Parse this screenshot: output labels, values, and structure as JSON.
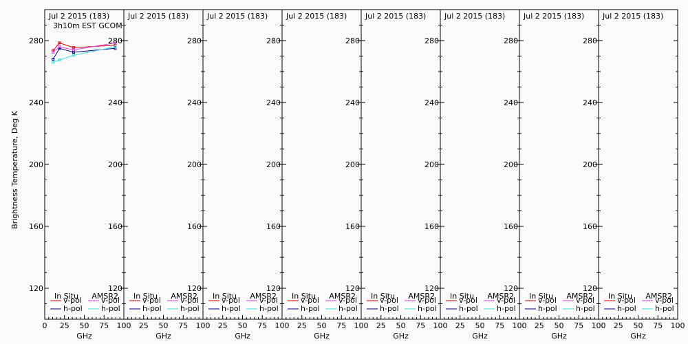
{
  "chart_data": {
    "type": "line",
    "ylabel": "Brightness Temperature, Deg K",
    "xlabel": "GHz",
    "xlim": [
      0,
      100
    ],
    "ylim": [
      100,
      300
    ],
    "xticks": [
      0,
      25,
      50,
      75,
      100
    ],
    "xtick_labels_first": [
      "0",
      "25",
      "50",
      "75",
      "100"
    ],
    "xtick_labels_other": [
      "",
      "25",
      "50",
      "75",
      "100"
    ],
    "yticks": [
      120,
      160,
      200,
      240,
      280
    ],
    "ytick_labels": [
      "120",
      "160",
      "200",
      "240",
      "280"
    ],
    "legend": {
      "group_left": "In Situ",
      "group_right": "AMSR2",
      "vpol": "v-pol",
      "hpol": "h-pol"
    },
    "colors": {
      "insitu_v": "#d00000",
      "insitu_h": "#000080",
      "amsr2_v": "#e040e0",
      "amsr2_h": "#40e0e0"
    },
    "panels": [
      {
        "title": "Jul 2 2015 (183)",
        "subtitle": "3h10m EST GCOM",
        "series": [
          {
            "name": "In Situ v-pol",
            "color_key": "insitu_v",
            "x": [
              10.65,
              18.7,
              36.5,
              89.0
            ],
            "y": [
              273.5,
              278.5,
              275.5,
              277.0
            ]
          },
          {
            "name": "In Situ h-pol",
            "color_key": "insitu_h",
            "x": [
              10.65,
              18.7,
              36.5,
              89.0
            ],
            "y": [
              268.0,
              275.0,
              272.5,
              275.0
            ]
          },
          {
            "name": "AMSR2 v-pol",
            "color_key": "amsr2_v",
            "x": [
              10.65,
              18.7,
              36.5,
              89.0
            ],
            "y": [
              272.5,
              276.0,
              274.0,
              278.5
            ]
          },
          {
            "name": "AMSR2 h-pol",
            "color_key": "amsr2_h",
            "x": [
              10.65,
              18.7,
              36.5,
              89.0
            ],
            "y": [
              266.0,
              267.5,
              270.5,
              276.0
            ]
          }
        ]
      },
      {
        "title": "Jul 2 2015 (183)",
        "subtitle": "",
        "series": []
      },
      {
        "title": "Jul 2 2015 (183)",
        "subtitle": "",
        "series": []
      },
      {
        "title": "Jul 2 2015 (183)",
        "subtitle": "",
        "series": []
      },
      {
        "title": "Jul 2 2015 (183)",
        "subtitle": "",
        "series": []
      },
      {
        "title": "Jul 2 2015 (183)",
        "subtitle": "",
        "series": []
      },
      {
        "title": "Jul 2 2015 (183)",
        "subtitle": "",
        "series": []
      },
      {
        "title": "Jul 2 2015 (183)",
        "subtitle": "",
        "series": []
      }
    ]
  }
}
